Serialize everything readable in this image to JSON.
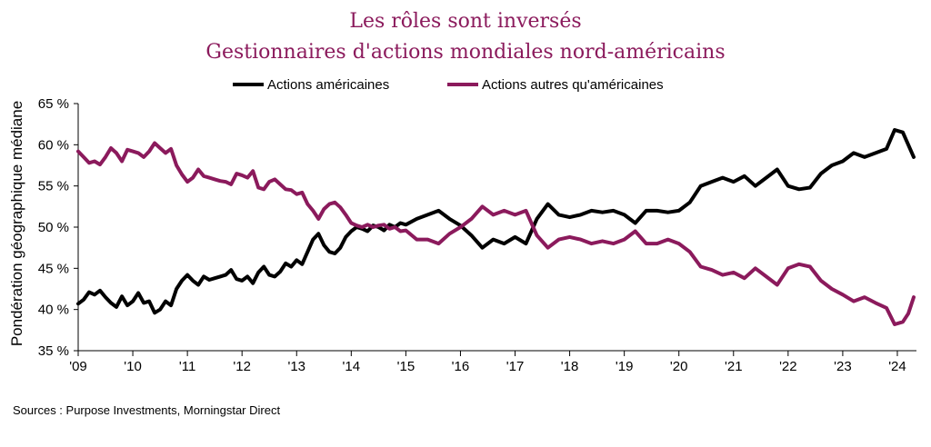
{
  "colors": {
    "title": "#8b1a5c",
    "us_series": "#000000",
    "non_us_series": "#8b1a5c",
    "axis": "#000000"
  },
  "chart_data": {
    "type": "line",
    "title_line1": "Les rôles sont inversés",
    "title_line2": "Gestionnaires d'actions mondiales nord-américains",
    "ylabel": "Pondération géographique médiane",
    "xlabel": "",
    "ylim": [
      35,
      65
    ],
    "yticks": [
      35,
      40,
      45,
      50,
      55,
      60,
      65
    ],
    "ytick_labels": [
      "35 %",
      "40 %",
      "45 %",
      "50 %",
      "55 %",
      "60 %",
      "65 %"
    ],
    "xlim": [
      2009,
      2024.35
    ],
    "xticks": [
      2009,
      2010,
      2011,
      2012,
      2013,
      2014,
      2015,
      2016,
      2017,
      2018,
      2019,
      2020,
      2021,
      2022,
      2023,
      2024
    ],
    "xtick_labels": [
      "'09",
      "'10",
      "'11",
      "'12",
      "'13",
      "'14",
      "'15",
      "'16",
      "'17",
      "'18",
      "'19",
      "'20",
      "'21",
      "'22",
      "'23",
      "'24"
    ],
    "legend_position": "top-center",
    "series": [
      {
        "name": "Actions américaines",
        "color": "#000000",
        "x": [
          2009.0,
          2009.1,
          2009.2,
          2009.3,
          2009.4,
          2009.5,
          2009.6,
          2009.7,
          2009.8,
          2009.9,
          2010.0,
          2010.1,
          2010.2,
          2010.3,
          2010.4,
          2010.5,
          2010.6,
          2010.7,
          2010.8,
          2010.9,
          2011.0,
          2011.1,
          2011.2,
          2011.3,
          2011.4,
          2011.5,
          2011.6,
          2011.7,
          2011.8,
          2011.9,
          2012.0,
          2012.1,
          2012.2,
          2012.3,
          2012.4,
          2012.5,
          2012.6,
          2012.7,
          2012.8,
          2012.9,
          2013.0,
          2013.1,
          2013.2,
          2013.3,
          2013.4,
          2013.5,
          2013.6,
          2013.7,
          2013.8,
          2013.9,
          2014.0,
          2014.1,
          2014.2,
          2014.3,
          2014.4,
          2014.5,
          2014.6,
          2014.7,
          2014.8,
          2014.9,
          2015.0,
          2015.2,
          2015.4,
          2015.6,
          2015.8,
          2016.0,
          2016.2,
          2016.4,
          2016.6,
          2016.8,
          2017.0,
          2017.2,
          2017.4,
          2017.6,
          2017.8,
          2018.0,
          2018.2,
          2018.4,
          2018.6,
          2018.8,
          2019.0,
          2019.2,
          2019.4,
          2019.6,
          2019.8,
          2020.0,
          2020.2,
          2020.4,
          2020.6,
          2020.8,
          2021.0,
          2021.2,
          2021.4,
          2021.6,
          2021.8,
          2022.0,
          2022.2,
          2022.4,
          2022.6,
          2022.8,
          2023.0,
          2023.2,
          2023.4,
          2023.6,
          2023.8,
          2023.95,
          2024.1,
          2024.2,
          2024.3
        ],
        "values": [
          40.7,
          41.2,
          42.1,
          41.8,
          42.3,
          41.5,
          40.8,
          40.3,
          41.6,
          40.5,
          41.0,
          42.0,
          40.8,
          41.0,
          39.6,
          40.0,
          41.0,
          40.5,
          42.5,
          43.5,
          44.2,
          43.5,
          43.0,
          44.0,
          43.6,
          43.8,
          44.0,
          44.2,
          44.8,
          43.7,
          43.5,
          44.0,
          43.2,
          44.5,
          45.2,
          44.2,
          44.0,
          44.6,
          45.6,
          45.2,
          46.0,
          45.5,
          47.0,
          48.5,
          49.2,
          47.8,
          47.0,
          46.8,
          47.5,
          48.8,
          49.5,
          50.0,
          49.8,
          49.5,
          50.2,
          50.0,
          49.6,
          50.3,
          50.0,
          50.5,
          50.3,
          51.0,
          51.5,
          52.0,
          51.0,
          50.2,
          49.0,
          47.5,
          48.5,
          48.0,
          48.8,
          48.0,
          51.0,
          52.8,
          51.5,
          51.2,
          51.5,
          52.0,
          51.8,
          52.0,
          51.5,
          50.5,
          52.0,
          52.0,
          51.8,
          52.0,
          53.0,
          55.0,
          55.5,
          56.0,
          55.5,
          56.2,
          55.0,
          56.0,
          57.0,
          55.0,
          54.6,
          54.8,
          56.5,
          57.5,
          58.0,
          59.0,
          58.5,
          59.0,
          59.5,
          61.8,
          61.5,
          60.0,
          58.5
        ]
      },
      {
        "name": "Actions autres qu'américaines",
        "color": "#8b1a5c",
        "x": [
          2009.0,
          2009.1,
          2009.2,
          2009.3,
          2009.4,
          2009.5,
          2009.6,
          2009.7,
          2009.8,
          2009.9,
          2010.0,
          2010.1,
          2010.2,
          2010.3,
          2010.4,
          2010.5,
          2010.6,
          2010.7,
          2010.8,
          2010.9,
          2011.0,
          2011.1,
          2011.2,
          2011.3,
          2011.4,
          2011.5,
          2011.6,
          2011.7,
          2011.8,
          2011.9,
          2012.0,
          2012.1,
          2012.2,
          2012.3,
          2012.4,
          2012.5,
          2012.6,
          2012.7,
          2012.8,
          2012.9,
          2013.0,
          2013.1,
          2013.2,
          2013.3,
          2013.4,
          2013.5,
          2013.6,
          2013.7,
          2013.8,
          2013.9,
          2014.0,
          2014.1,
          2014.2,
          2014.3,
          2014.4,
          2014.5,
          2014.6,
          2014.7,
          2014.8,
          2014.9,
          2015.0,
          2015.2,
          2015.4,
          2015.6,
          2015.8,
          2016.0,
          2016.2,
          2016.4,
          2016.6,
          2016.8,
          2017.0,
          2017.2,
          2017.4,
          2017.6,
          2017.8,
          2018.0,
          2018.2,
          2018.4,
          2018.6,
          2018.8,
          2019.0,
          2019.2,
          2019.4,
          2019.6,
          2019.8,
          2020.0,
          2020.2,
          2020.4,
          2020.6,
          2020.8,
          2021.0,
          2021.2,
          2021.4,
          2021.6,
          2021.8,
          2022.0,
          2022.2,
          2022.4,
          2022.6,
          2022.8,
          2023.0,
          2023.2,
          2023.4,
          2023.6,
          2023.8,
          2023.95,
          2024.1,
          2024.2,
          2024.3
        ],
        "values": [
          59.2,
          58.5,
          57.8,
          58.0,
          57.6,
          58.5,
          59.6,
          59.0,
          58.0,
          59.4,
          59.2,
          59.0,
          58.5,
          59.2,
          60.2,
          59.6,
          59.0,
          59.5,
          57.5,
          56.4,
          55.5,
          56.0,
          57.0,
          56.2,
          56.0,
          55.8,
          55.6,
          55.5,
          55.2,
          56.5,
          56.3,
          56.0,
          56.8,
          54.8,
          54.6,
          55.5,
          55.8,
          55.2,
          54.6,
          54.5,
          54.0,
          54.2,
          52.8,
          52.0,
          51.0,
          52.2,
          52.8,
          53.0,
          52.4,
          51.5,
          50.5,
          50.2,
          50.0,
          50.3,
          50.0,
          50.2,
          50.3,
          49.8,
          50.0,
          49.5,
          49.6,
          48.5,
          48.5,
          48.0,
          49.2,
          50.0,
          51.0,
          52.5,
          51.5,
          52.0,
          51.5,
          52.0,
          49.0,
          47.5,
          48.5,
          48.8,
          48.5,
          48.0,
          48.3,
          48.0,
          48.5,
          49.5,
          48.0,
          48.0,
          48.5,
          48.0,
          47.0,
          45.2,
          44.8,
          44.2,
          44.5,
          43.8,
          45.0,
          44.0,
          43.0,
          45.0,
          45.5,
          45.2,
          43.5,
          42.5,
          41.8,
          41.0,
          41.5,
          40.8,
          40.2,
          38.2,
          38.5,
          39.5,
          41.5
        ]
      }
    ]
  },
  "source_text": "Sources : Purpose Investments, Morningstar Direct"
}
